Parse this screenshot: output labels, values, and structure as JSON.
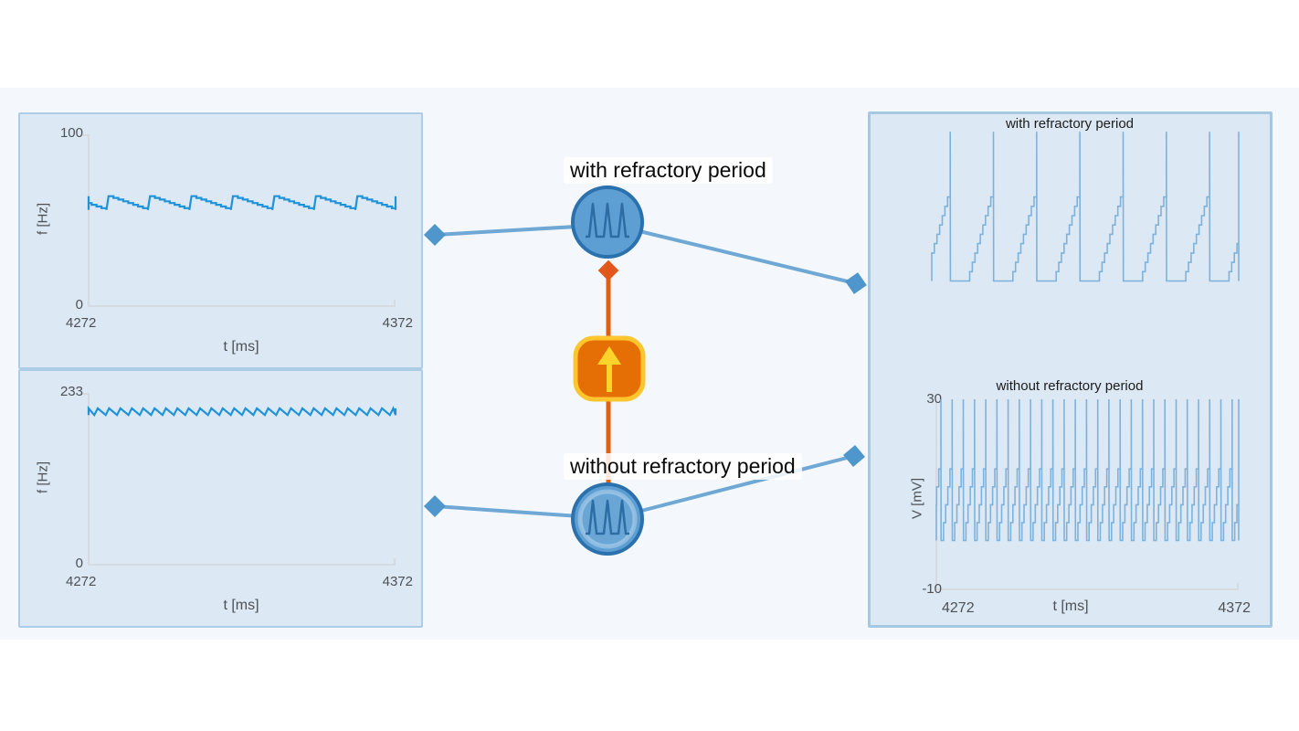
{
  "colors": {
    "workspace_bg": "#f4f8fc",
    "panel_fill": "#dce8f4",
    "panel_border": "#adcde6",
    "connection_blue": "#6fa8d4",
    "connection_diamond": "#4f96cc",
    "connection_orange": "#e05f10",
    "neuron_fill": "#5d9fd3",
    "neuron_border": "#2b71ae",
    "node_orange_fill": "#e56f04",
    "node_orange_border": "#fdc62e",
    "left_trace": "#1f93d9",
    "right_trace": "#7fb2da"
  },
  "nodes": {
    "neuron_with_refractory": {
      "label": "with refractory period",
      "icon": "spike-train-icon"
    },
    "neuron_without_refractory": {
      "label": "without refractory period",
      "icon": "spike-train-icon"
    },
    "current_source": {
      "icon": "arrow-up-icon"
    }
  },
  "chart_data": [
    {
      "id": "frequency-with-refractory",
      "type": "line",
      "title": "",
      "xlabel": "t [ms]",
      "ylabel": "f [Hz]",
      "xlim": [
        4272,
        4372
      ],
      "ylim": [
        0,
        100
      ],
      "x_min_label": "4272",
      "x_max_label": "4372",
      "y_min_label": "0",
      "y_max_label": "100",
      "color": "#1f93d9",
      "waveform": {
        "kind": "adapt_saw",
        "base": 56,
        "amp": 8,
        "cycles": 7.4,
        "rise_frac": 0.05,
        "steps": 8,
        "phase": 0.57
      },
      "summary": "firing rate sawtooth ~56-64 Hz, 7 adaptation peaks over 100 ms"
    },
    {
      "id": "frequency-without-refractory",
      "type": "line",
      "title": "",
      "xlabel": "t [ms]",
      "ylabel": "f [Hz]",
      "xlim": [
        4272,
        4372
      ],
      "ylim": [
        0,
        233
      ],
      "x_min_label": "4272",
      "x_max_label": "4372",
      "y_min_label": "0",
      "y_max_label": "233",
      "color": "#1f93d9",
      "waveform": {
        "kind": "adapt_saw",
        "base": 203,
        "amp": 9,
        "cycles": 27,
        "rise_frac": 0.3,
        "steps": 1,
        "phase": 0.5
      },
      "summary": "firing rate ~203-212 Hz, about 27 small sawtooth ripples over 100 ms"
    },
    {
      "id": "voltage-with-refractory",
      "type": "line",
      "title": "with refractory period",
      "xlabel": "",
      "ylabel": "",
      "xlim": [
        4272,
        4372
      ],
      "ylim": [
        -16,
        31
      ],
      "color": "#7fb2da",
      "waveform": {
        "kind": "lif_refractory",
        "reset": -10,
        "threshold": 15,
        "peak": 30,
        "cycles": 7.1,
        "refractory_frac": 0.36,
        "steps": 10,
        "phase": 0.544
      },
      "summary": "membrane potential: flat refractory hold at -10 mV, stepped ramp to threshold ~15 mV, spike to 30 mV; 7 spikes per 100 ms"
    },
    {
      "id": "voltage-without-refractory",
      "type": "line",
      "title": "without refractory period",
      "xlabel": "t [ms]",
      "ylabel": "V [mV]",
      "xlim": [
        4272,
        4372
      ],
      "ylim": [
        -10,
        30
      ],
      "x_min_label": "4272",
      "x_max_label": "4372",
      "y_min_label": "-10",
      "y_max_label": "30",
      "color": "#7fb2da",
      "waveform": {
        "kind": "lif_plain",
        "reset": 0,
        "threshold": 19,
        "peak": 30,
        "cycles": 27,
        "steps": 5,
        "phase": 0.55
      },
      "summary": "membrane potential: continuous stepped ramps 0 to ~19 mV with spikes to 30 mV; ~27 spikes per 100 ms"
    }
  ]
}
